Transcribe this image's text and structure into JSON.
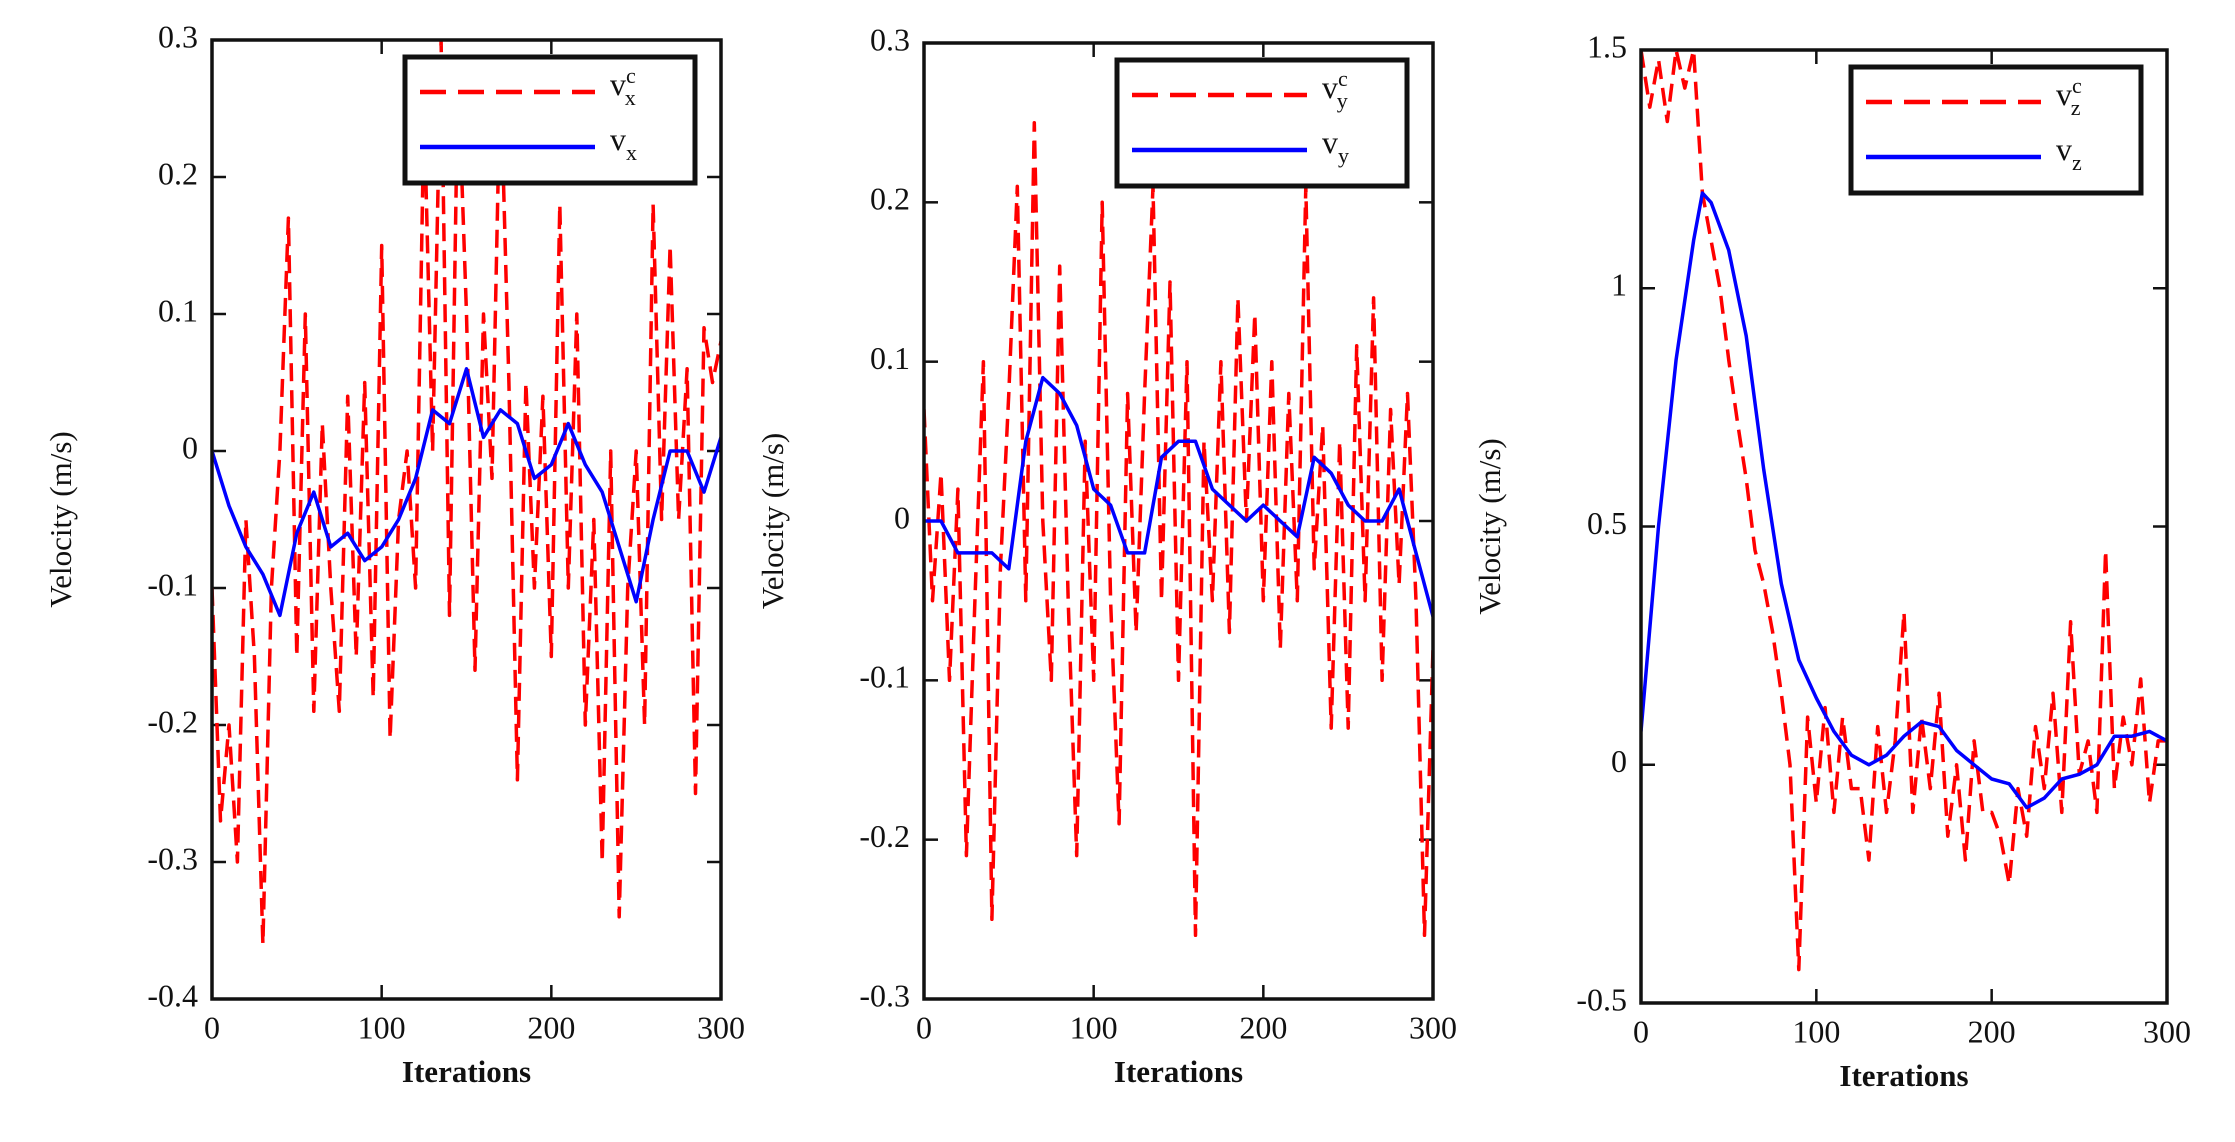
{
  "chart_data": [
    {
      "type": "line",
      "xlabel": "Iterations",
      "ylabel": "Velocity (m/s)",
      "xlim": [
        0,
        300
      ],
      "ylim": [
        -0.4,
        0.3
      ],
      "xticks": [
        0,
        100,
        200,
        300
      ],
      "yticks": [
        -0.4,
        -0.3,
        -0.2,
        -0.1,
        0,
        0.1,
        0.2,
        0.3
      ],
      "legend": "upper right",
      "series": [
        {
          "name": "v",
          "superscript": "c",
          "subscript": "x",
          "color": "#ff0000",
          "linestyle": "dashed",
          "x": [
            0,
            5,
            10,
            15,
            20,
            25,
            30,
            35,
            40,
            45,
            50,
            55,
            60,
            65,
            70,
            75,
            80,
            85,
            90,
            95,
            100,
            105,
            110,
            115,
            120,
            125,
            130,
            135,
            140,
            145,
            150,
            155,
            160,
            165,
            170,
            175,
            180,
            185,
            190,
            195,
            200,
            205,
            210,
            215,
            220,
            225,
            230,
            235,
            240,
            245,
            250,
            255,
            260,
            265,
            270,
            275,
            280,
            285,
            290,
            295,
            300
          ],
          "values": [
            -0.1,
            -0.27,
            -0.2,
            -0.3,
            -0.05,
            -0.15,
            -0.36,
            -0.1,
            0.0,
            0.17,
            -0.15,
            0.1,
            -0.19,
            0.02,
            -0.1,
            -0.19,
            0.04,
            -0.15,
            0.05,
            -0.18,
            0.15,
            -0.21,
            -0.05,
            0.0,
            -0.1,
            0.25,
            0.0,
            0.3,
            -0.12,
            0.28,
            0.1,
            -0.16,
            0.1,
            -0.02,
            0.28,
            0.05,
            -0.24,
            0.05,
            -0.1,
            0.04,
            -0.15,
            0.18,
            -0.1,
            0.1,
            -0.2,
            -0.05,
            -0.3,
            0.0,
            -0.34,
            -0.1,
            0.0,
            -0.2,
            0.18,
            -0.05,
            0.15,
            -0.05,
            0.06,
            -0.25,
            0.09,
            0.05,
            0.08
          ]
        },
        {
          "name": "v",
          "subscript": "x",
          "color": "#0000ff",
          "linestyle": "solid",
          "x": [
            0,
            10,
            20,
            30,
            40,
            50,
            60,
            70,
            80,
            90,
            100,
            110,
            120,
            130,
            140,
            150,
            160,
            170,
            180,
            190,
            200,
            210,
            220,
            230,
            240,
            250,
            260,
            270,
            280,
            290,
            300
          ],
          "values": [
            0,
            -0.04,
            -0.07,
            -0.09,
            -0.12,
            -0.06,
            -0.03,
            -0.07,
            -0.06,
            -0.08,
            -0.07,
            -0.05,
            -0.02,
            0.03,
            0.02,
            0.06,
            0.01,
            0.03,
            0.02,
            -0.02,
            -0.01,
            0.02,
            -0.01,
            -0.03,
            -0.07,
            -0.11,
            -0.05,
            0.0,
            0.0,
            -0.03,
            0.01
          ]
        }
      ]
    },
    {
      "type": "line",
      "xlabel": "Iterations",
      "ylabel": "Velocity (m/s)",
      "xlim": [
        0,
        300
      ],
      "ylim": [
        -0.3,
        0.3
      ],
      "xticks": [
        0,
        100,
        200,
        300
      ],
      "yticks": [
        -0.3,
        -0.2,
        -0.1,
        0,
        0.1,
        0.2,
        0.3
      ],
      "legend": "upper right",
      "series": [
        {
          "name": "v",
          "superscript": "c",
          "subscript": "y",
          "color": "#ff0000",
          "linestyle": "dashed",
          "x": [
            0,
            5,
            10,
            15,
            20,
            25,
            30,
            35,
            40,
            45,
            50,
            55,
            60,
            65,
            70,
            75,
            80,
            85,
            90,
            95,
            100,
            105,
            110,
            115,
            120,
            125,
            130,
            135,
            140,
            145,
            150,
            155,
            160,
            165,
            170,
            175,
            180,
            185,
            190,
            195,
            200,
            205,
            210,
            215,
            220,
            225,
            230,
            235,
            240,
            245,
            250,
            255,
            260,
            265,
            270,
            275,
            280,
            285,
            290,
            295,
            300
          ],
          "values": [
            0.07,
            -0.05,
            0.03,
            -0.1,
            0.02,
            -0.21,
            -0.05,
            0.1,
            -0.25,
            -0.03,
            0.08,
            0.21,
            -0.05,
            0.25,
            0.0,
            -0.1,
            0.16,
            -0.05,
            -0.21,
            0.05,
            -0.1,
            0.2,
            -0.05,
            -0.19,
            0.08,
            -0.07,
            0.08,
            0.21,
            -0.05,
            0.15,
            -0.1,
            0.1,
            -0.26,
            0.05,
            -0.05,
            0.1,
            -0.07,
            0.14,
            0.0,
            0.13,
            -0.05,
            0.1,
            -0.08,
            0.08,
            -0.05,
            0.21,
            -0.03,
            0.06,
            -0.13,
            0.05,
            -0.13,
            0.11,
            -0.05,
            0.14,
            -0.1,
            0.07,
            -0.04,
            0.08,
            -0.05,
            -0.26,
            -0.08
          ]
        },
        {
          "name": "v",
          "subscript": "y",
          "color": "#0000ff",
          "linestyle": "solid",
          "x": [
            0,
            10,
            20,
            30,
            40,
            50,
            60,
            70,
            80,
            90,
            100,
            110,
            120,
            130,
            140,
            150,
            160,
            170,
            180,
            190,
            200,
            210,
            220,
            230,
            240,
            250,
            260,
            270,
            280,
            290,
            300
          ],
          "values": [
            0,
            0,
            -0.02,
            -0.02,
            -0.02,
            -0.03,
            0.05,
            0.09,
            0.08,
            0.06,
            0.02,
            0.01,
            -0.02,
            -0.02,
            0.04,
            0.05,
            0.05,
            0.02,
            0.01,
            0,
            0.01,
            0,
            -0.01,
            0.04,
            0.03,
            0.01,
            0,
            0,
            0.02,
            -0.02,
            -0.06
          ]
        }
      ]
    },
    {
      "type": "line",
      "xlabel": "Iterations",
      "ylabel": "Velocity (m/s)",
      "xlim": [
        0,
        300
      ],
      "ylim": [
        -0.5,
        1.5
      ],
      "xticks": [
        0,
        100,
        200,
        300
      ],
      "yticks": [
        -0.5,
        0,
        0.5,
        1,
        1.5
      ],
      "legend": "upper right",
      "series": [
        {
          "name": "v",
          "superscript": "c",
          "subscript": "z",
          "color": "#ff0000",
          "linestyle": "dashed",
          "x": [
            0,
            5,
            10,
            15,
            20,
            25,
            30,
            35,
            40,
            45,
            50,
            55,
            60,
            65,
            70,
            75,
            80,
            85,
            90,
            95,
            100,
            105,
            110,
            115,
            120,
            125,
            130,
            135,
            140,
            145,
            150,
            155,
            160,
            165,
            170,
            175,
            180,
            185,
            190,
            195,
            200,
            205,
            210,
            215,
            220,
            225,
            230,
            235,
            240,
            245,
            250,
            255,
            260,
            265,
            270,
            275,
            280,
            285,
            290,
            295,
            300
          ],
          "values": [
            1.5,
            1.38,
            1.48,
            1.35,
            1.5,
            1.42,
            1.5,
            1.2,
            1.1,
            1.0,
            0.85,
            0.72,
            0.6,
            0.45,
            0.38,
            0.28,
            0.15,
            0.0,
            -0.43,
            0.1,
            -0.08,
            0.12,
            -0.1,
            0.1,
            -0.05,
            -0.05,
            -0.2,
            0.08,
            -0.1,
            0.05,
            0.32,
            -0.1,
            0.1,
            -0.05,
            0.15,
            -0.15,
            0.0,
            -0.2,
            0.05,
            -0.1,
            -0.1,
            -0.15,
            -0.25,
            -0.05,
            -0.15,
            0.08,
            -0.05,
            0.15,
            -0.1,
            0.3,
            -0.02,
            0.05,
            -0.1,
            0.45,
            -0.05,
            0.1,
            0.0,
            0.18,
            -0.08,
            0.05,
            0.05
          ]
        },
        {
          "name": "v",
          "subscript": "z",
          "color": "#0000ff",
          "linestyle": "solid",
          "x": [
            0,
            10,
            20,
            30,
            35,
            40,
            50,
            60,
            70,
            80,
            90,
            100,
            110,
            120,
            130,
            140,
            150,
            160,
            170,
            180,
            190,
            200,
            210,
            220,
            230,
            240,
            250,
            260,
            270,
            280,
            290,
            300
          ],
          "values": [
            0.07,
            0.5,
            0.85,
            1.1,
            1.2,
            1.18,
            1.08,
            0.9,
            0.62,
            0.38,
            0.22,
            0.14,
            0.07,
            0.02,
            0,
            0.02,
            0.06,
            0.09,
            0.08,
            0.03,
            0,
            -0.03,
            -0.04,
            -0.09,
            -0.07,
            -0.03,
            -0.02,
            0,
            0.06,
            0.06,
            0.07,
            0.05
          ]
        }
      ]
    }
  ]
}
